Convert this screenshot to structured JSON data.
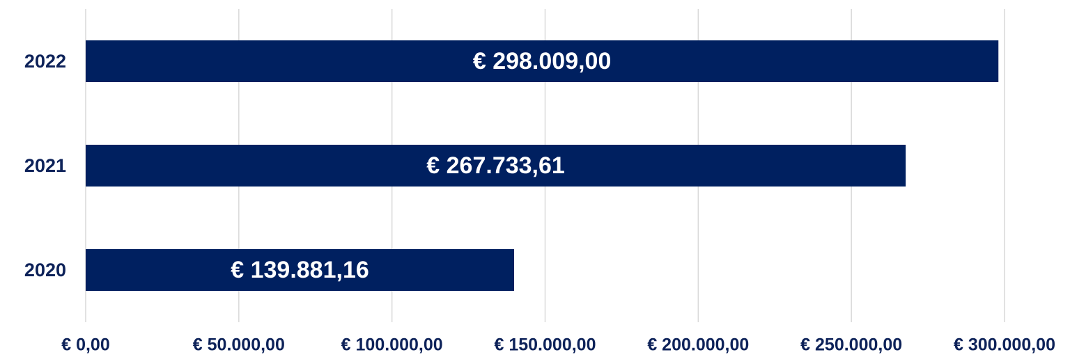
{
  "chart_data": {
    "type": "barh",
    "categories": [
      "2022",
      "2021",
      "2020"
    ],
    "values": [
      298009.0,
      267733.61,
      139881.16
    ],
    "value_labels": [
      "€ 298.009,00",
      "€ 267.733,61",
      "€ 139.881,16"
    ],
    "color": "#002060",
    "xlim": [
      0,
      300000
    ],
    "xticks": [
      {
        "value": 0,
        "label": "€ 0,00"
      },
      {
        "value": 50000,
        "label": "€ 50.000,00"
      },
      {
        "value": 100000,
        "label": "€ 100.000,00"
      },
      {
        "value": 150000,
        "label": "€ 150.000,00"
      },
      {
        "value": 200000,
        "label": "€ 200.000,00"
      },
      {
        "value": 250000,
        "label": "€ 250.000,00"
      },
      {
        "value": 300000,
        "label": "€ 300.000,00"
      }
    ],
    "grid": true
  }
}
